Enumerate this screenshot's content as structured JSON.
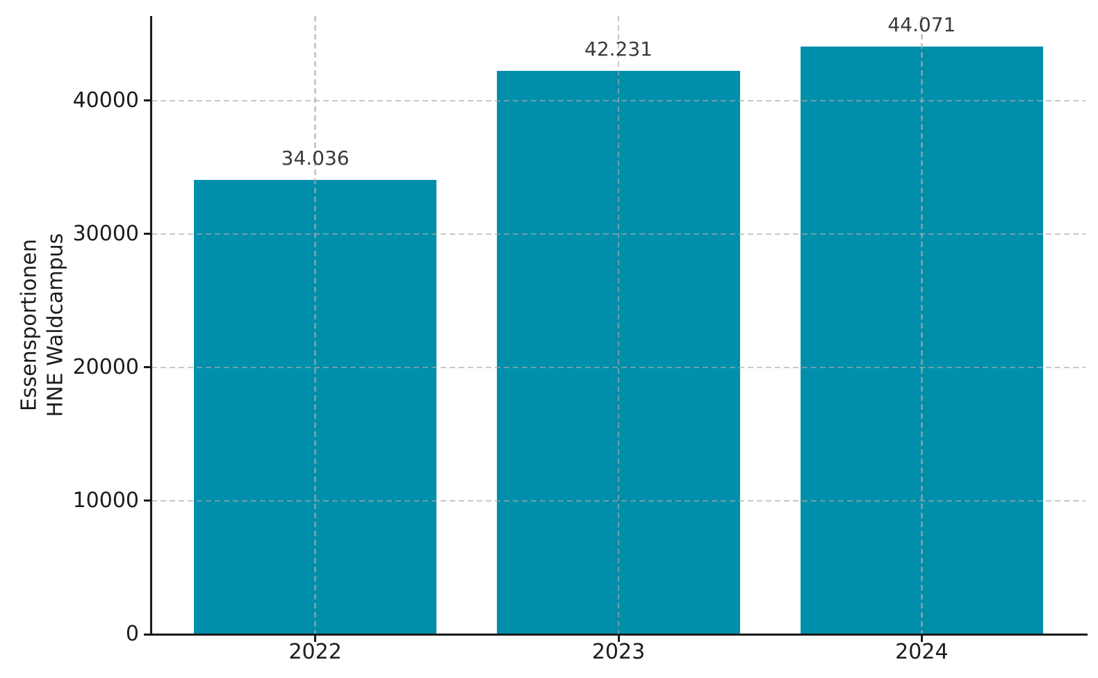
{
  "chart_data": {
    "type": "bar",
    "categories": [
      "2022",
      "2023",
      "2024"
    ],
    "values": [
      34036,
      42231,
      44071
    ],
    "value_labels": [
      "34.036",
      "42.231",
      "44.071"
    ],
    "title": "",
    "xlabel": "",
    "ylabel": "Essensportionen\nHNE Waldcampus",
    "yticks": [
      0,
      10000,
      20000,
      30000,
      40000
    ],
    "ytick_labels": [
      "0",
      "10000",
      "20000",
      "30000",
      "40000"
    ],
    "ylim": [
      0,
      46350
    ],
    "bar_color": "#008fab",
    "grid": true,
    "grid_style": "dashed",
    "grid_color": "#aaaaaa",
    "axis_color": "#1a1a1a",
    "tick_label_color": "#1c1c1c",
    "value_label_color": "#3a3a3a",
    "legend": false
  }
}
